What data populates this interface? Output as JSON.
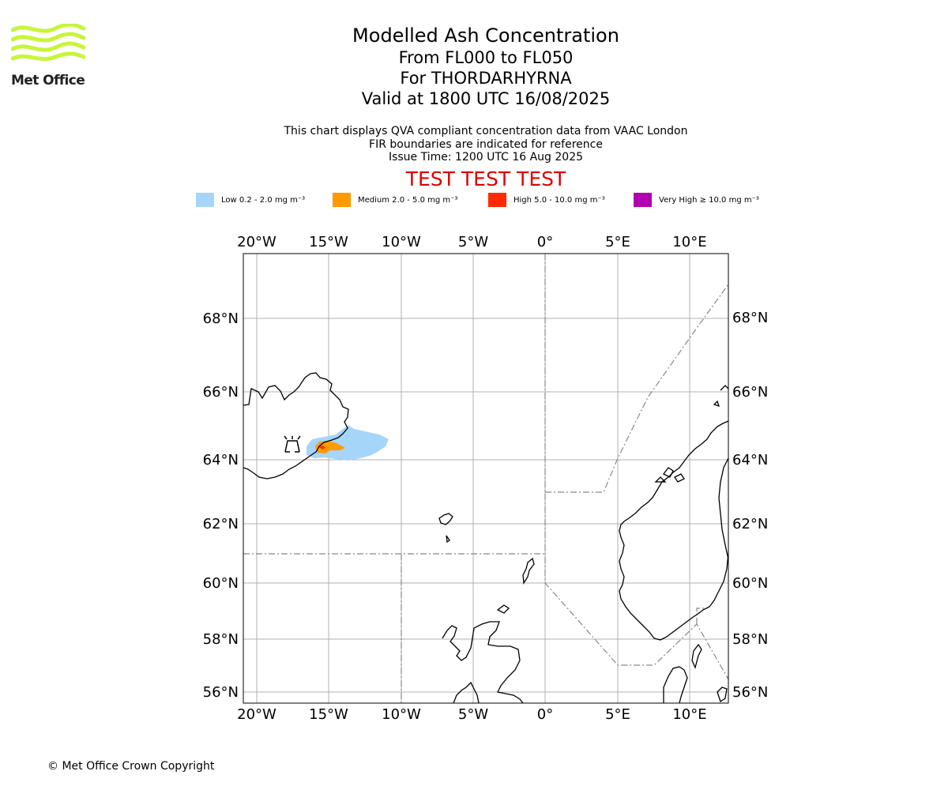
{
  "logo": {
    "text": "Met Office"
  },
  "title": {
    "line1": "Modelled Ash Concentration",
    "line2": "From FL000 to FL050",
    "line3": "For THORDARHYRNA",
    "line4": "Valid at 1800 UTC 16/08/2025"
  },
  "subtitle": {
    "line1": "This chart displays QVA compliant concentration data from VAAC London",
    "line2": "FIR boundaries are indicated for reference",
    "line3": "Issue Time: 1200 UTC 16 Aug 2025"
  },
  "warning": "TEST TEST TEST",
  "legend": [
    {
      "label": "Low 0.2 - 2.0 mg m⁻³",
      "color": "#a6d5fa"
    },
    {
      "label": "Medium 2.0 - 5.0 mg m⁻³",
      "color": "#ff9a00"
    },
    {
      "label": "High 5.0 - 10.0 mg m⁻³",
      "color": "#ff2a00"
    },
    {
      "label": "Very High ≥ 10.0 mg m⁻³",
      "color": "#b000b0"
    }
  ],
  "map": {
    "lon_ticks": [
      "20°W",
      "15°W",
      "10°W",
      "5°W",
      "0°",
      "5°E",
      "10°E"
    ],
    "lat_ticks": [
      "68°N",
      "66°N",
      "64°N",
      "62°N",
      "60°N",
      "58°N",
      "56°N"
    ],
    "volcano_icon": "volcano-icon"
  },
  "copyright": "© Met Office Crown Copyright"
}
